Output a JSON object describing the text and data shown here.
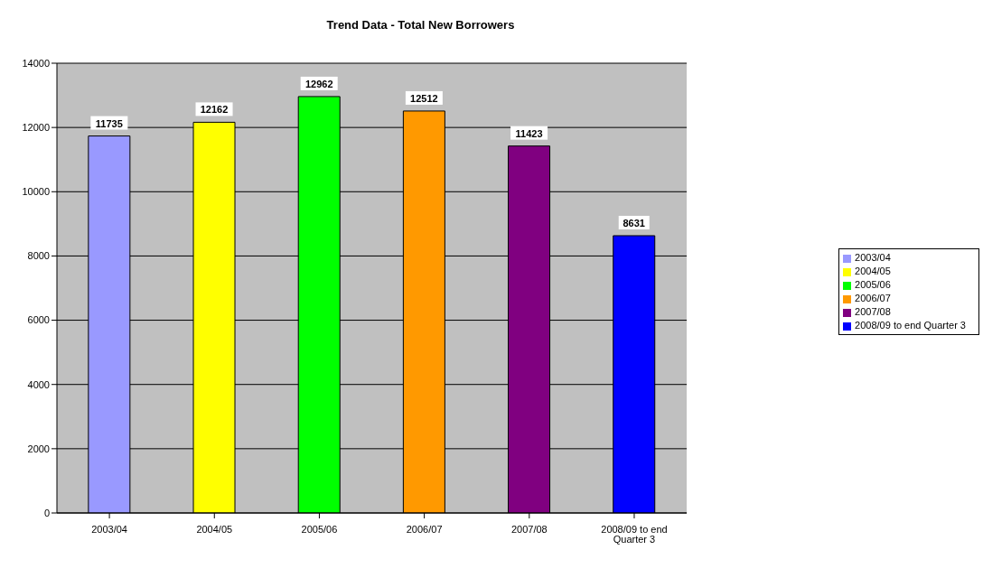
{
  "chart_data": {
    "type": "bar",
    "title": "Trend Data - Total New Borrowers",
    "categories": [
      "2003/04",
      "2004/05",
      "2005/06",
      "2006/07",
      "2007/08",
      "2008/09 to end Quarter 3"
    ],
    "series": [
      {
        "name": "2003/04",
        "color": "#9999ff",
        "values": [
          11735,
          null,
          null,
          null,
          null,
          null
        ]
      },
      {
        "name": "2004/05",
        "color": "#ffff00",
        "values": [
          null,
          12162,
          null,
          null,
          null,
          null
        ]
      },
      {
        "name": "2005/06",
        "color": "#00ff00",
        "values": [
          null,
          null,
          12962,
          null,
          null,
          null
        ]
      },
      {
        "name": "2006/07",
        "color": "#ff9900",
        "values": [
          null,
          null,
          null,
          12512,
          null,
          null
        ]
      },
      {
        "name": "2007/08",
        "color": "#800080",
        "values": [
          null,
          null,
          null,
          null,
          11423,
          null
        ]
      },
      {
        "name": "2008/09 to end Quarter 3",
        "color": "#0000ff",
        "values": [
          null,
          null,
          null,
          null,
          null,
          8631
        ]
      }
    ],
    "stacked": true,
    "ylim": [
      0,
      14000
    ],
    "yticks": [
      0,
      2000,
      4000,
      6000,
      8000,
      10000,
      12000,
      14000
    ],
    "grid": "y",
    "legend": "right",
    "data_labels": true
  }
}
